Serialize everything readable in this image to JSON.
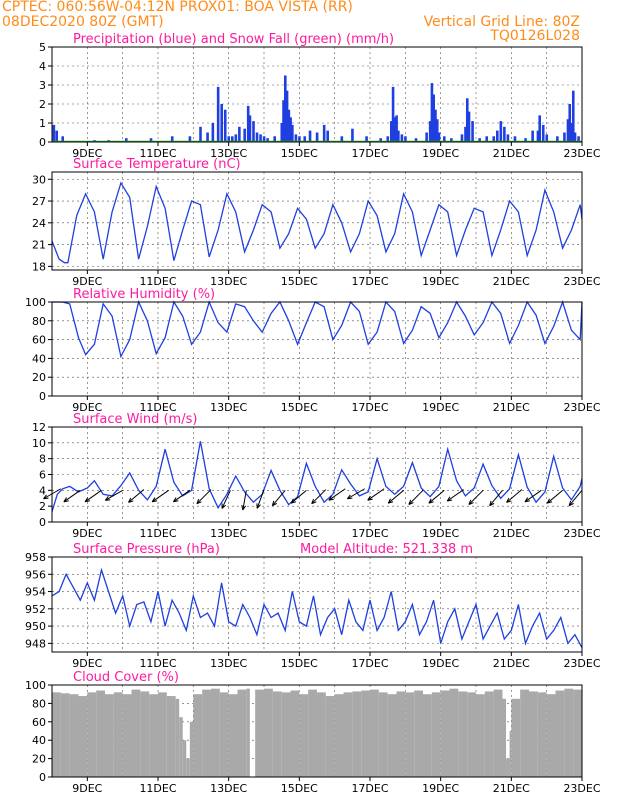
{
  "header": {
    "line1_left": "CPTEC:   060:56W-04:12N   PROX01: BOA VISTA (RR)",
    "line2_left": "08DEC2020 80Z (GMT)",
    "line2_right": "Vertical Grid Line: 80Z",
    "line3_right": "TQ0126L028"
  },
  "colors": {
    "header": "#ff8c1a",
    "panel_title": "#ff1aa0",
    "line": "#1f3fe0",
    "precip": "#1f3fe0",
    "snow": "#22aa22",
    "cloud": "#a9a9a9"
  },
  "time_axis": {
    "start_day": 8,
    "end_day": 23,
    "tick_labels": [
      {
        "day": 9,
        "label": "9DEC"
      },
      {
        "day": 11,
        "label": "11DEC"
      },
      {
        "day": 13,
        "label": "13DEC"
      },
      {
        "day": 15,
        "label": "15DEC"
      },
      {
        "day": 17,
        "label": "17DEC"
      },
      {
        "day": 19,
        "label": "19DEC"
      },
      {
        "day": 21,
        "label": "21DEC"
      },
      {
        "day": 23,
        "label": "23DEC"
      }
    ]
  },
  "chart_data": [
    {
      "type": "bar",
      "id": "precip",
      "title": "Precipitation (blue) and Snow Fall (green) (mm/h)",
      "ylim": [
        0,
        5
      ],
      "yticks": [
        0,
        1,
        2,
        3,
        4,
        5
      ],
      "grid": true,
      "series": [
        {
          "name": "Precipitation",
          "x": [
            8.05,
            8.13,
            8.3,
            9.2,
            9.6,
            10.1,
            10.8,
            11.4,
            11.9,
            12.2,
            12.4,
            12.55,
            12.7,
            12.8,
            12.9,
            13.0,
            13.1,
            13.2,
            13.3,
            13.45,
            13.55,
            13.6,
            13.7,
            13.8,
            13.9,
            14.0,
            14.1,
            14.3,
            14.5,
            14.55,
            14.6,
            14.65,
            14.7,
            14.75,
            14.8,
            14.9,
            15.0,
            15.15,
            15.3,
            15.5,
            15.7,
            15.8,
            16.2,
            16.5,
            16.9,
            17.3,
            17.5,
            17.6,
            17.65,
            17.7,
            17.75,
            17.8,
            17.9,
            18.0,
            18.3,
            18.6,
            18.7,
            18.75,
            18.8,
            18.85,
            18.9,
            18.95,
            19.1,
            19.3,
            19.6,
            19.7,
            19.75,
            19.8,
            19.9,
            20.1,
            20.3,
            20.5,
            20.6,
            20.7,
            20.8,
            20.9,
            21.1,
            21.4,
            21.6,
            21.75,
            21.8,
            21.9,
            22.0,
            22.3,
            22.5,
            22.6,
            22.65,
            22.7,
            22.75,
            22.8,
            22.9
          ],
          "values": [
            0.9,
            0.6,
            0.3,
            0.1,
            0.1,
            0.2,
            0.2,
            0.3,
            0.3,
            0.8,
            0.5,
            1.0,
            2.9,
            2.0,
            1.7,
            0.3,
            0.3,
            0.4,
            0.8,
            0.7,
            1.9,
            1.4,
            1.1,
            0.5,
            0.4,
            0.3,
            0.2,
            0.3,
            1.0,
            2.2,
            3.5,
            2.7,
            1.7,
            1.3,
            0.9,
            0.4,
            0.3,
            0.3,
            0.6,
            0.5,
            0.9,
            0.6,
            0.3,
            0.7,
            0.3,
            0.2,
            0.3,
            1.1,
            2.9,
            1.3,
            1.4,
            0.6,
            0.4,
            0.3,
            0.2,
            0.5,
            1.1,
            3.1,
            2.5,
            1.7,
            1.2,
            0.5,
            0.3,
            0.2,
            0.4,
            0.8,
            2.3,
            1.6,
            1.1,
            0.2,
            0.3,
            0.3,
            0.6,
            1.1,
            0.8,
            0.4,
            0.3,
            0.2,
            0.6,
            0.6,
            1.4,
            0.9,
            0.4,
            0.3,
            0.5,
            1.2,
            2.0,
            1.0,
            2.7,
            0.5,
            0.3
          ]
        },
        {
          "name": "Snow Fall",
          "x": [],
          "values": []
        }
      ]
    },
    {
      "type": "line",
      "id": "temp",
      "title": "Surface Temperature (nC)",
      "ylim": [
        17.5,
        31
      ],
      "yticks": [
        18,
        21,
        24,
        27,
        30
      ],
      "grid": true,
      "series": [
        {
          "name": "Surface Temperature",
          "x": [
            8.0,
            8.2,
            8.35,
            8.45,
            8.7,
            8.95,
            9.2,
            9.45,
            9.7,
            9.95,
            10.2,
            10.45,
            10.7,
            10.95,
            11.2,
            11.45,
            11.7,
            11.95,
            12.2,
            12.45,
            12.7,
            12.95,
            13.2,
            13.45,
            13.7,
            13.95,
            14.2,
            14.45,
            14.7,
            14.95,
            15.2,
            15.45,
            15.7,
            15.95,
            16.2,
            16.45,
            16.7,
            16.95,
            17.2,
            17.45,
            17.7,
            17.95,
            18.2,
            18.45,
            18.7,
            18.95,
            19.2,
            19.45,
            19.7,
            19.95,
            20.2,
            20.45,
            20.7,
            20.95,
            21.2,
            21.45,
            21.7,
            21.95,
            22.2,
            22.45,
            22.7,
            22.95,
            23.0
          ],
          "values": [
            21.5,
            19.0,
            18.5,
            18.5,
            25.0,
            28.0,
            25.5,
            19.0,
            25.5,
            29.5,
            27.5,
            19.0,
            23.5,
            29.0,
            26.0,
            18.8,
            23.0,
            27.0,
            26.5,
            19.3,
            23.0,
            28.0,
            25.5,
            20.0,
            23.0,
            26.5,
            25.5,
            20.5,
            22.5,
            26.0,
            24.5,
            20.5,
            22.5,
            26.5,
            24.0,
            20.0,
            22.5,
            27.0,
            25.0,
            20.0,
            22.5,
            28.0,
            25.5,
            19.5,
            23.0,
            26.5,
            25.5,
            19.5,
            23.0,
            26.0,
            25.5,
            19.5,
            23.0,
            27.0,
            25.5,
            19.5,
            23.0,
            28.5,
            25.5,
            20.5,
            23.0,
            26.5,
            24.5
          ]
        }
      ]
    },
    {
      "type": "line",
      "id": "rh",
      "title": "Relative Humidity (%)",
      "ylim": [
        0,
        100
      ],
      "yticks": [
        0,
        20,
        40,
        60,
        80,
        100
      ],
      "grid": true,
      "series": [
        {
          "name": "Relative Humidity",
          "x": [
            8.0,
            8.3,
            8.5,
            8.75,
            8.95,
            9.2,
            9.45,
            9.7,
            9.95,
            10.2,
            10.45,
            10.7,
            10.95,
            11.2,
            11.45,
            11.7,
            11.95,
            12.2,
            12.45,
            12.7,
            12.95,
            13.2,
            13.45,
            13.7,
            13.95,
            14.2,
            14.45,
            14.7,
            14.95,
            15.2,
            15.45,
            15.7,
            15.95,
            16.2,
            16.45,
            16.7,
            16.95,
            17.2,
            17.45,
            17.7,
            17.95,
            18.2,
            18.45,
            18.7,
            18.95,
            19.2,
            19.45,
            19.7,
            19.95,
            20.2,
            20.45,
            20.7,
            20.95,
            21.2,
            21.45,
            21.7,
            21.95,
            22.2,
            22.45,
            22.7,
            22.95,
            23.0
          ],
          "values": [
            100,
            100,
            98,
            62,
            44,
            55,
            98,
            85,
            42,
            60,
            100,
            80,
            45,
            62,
            100,
            85,
            55,
            68,
            100,
            78,
            68,
            98,
            95,
            80,
            68,
            88,
            100,
            80,
            55,
            78,
            100,
            95,
            60,
            75,
            100,
            90,
            55,
            68,
            100,
            90,
            56,
            70,
            95,
            88,
            62,
            78,
            100,
            85,
            65,
            78,
            100,
            88,
            56,
            75,
            100,
            86,
            56,
            74,
            100,
            70,
            60,
            100
          ]
        }
      ]
    },
    {
      "type": "line",
      "id": "wind",
      "title": "Surface Wind (m/s)",
      "ylim": [
        0,
        12
      ],
      "yticks": [
        0,
        2,
        4,
        6,
        8,
        10,
        12
      ],
      "grid": true,
      "series": [
        {
          "name": "Surface Wind",
          "x": [
            8.0,
            8.15,
            8.3,
            8.5,
            8.75,
            9.0,
            9.2,
            9.45,
            9.7,
            9.95,
            10.2,
            10.45,
            10.7,
            10.95,
            11.2,
            11.45,
            11.7,
            11.95,
            12.2,
            12.45,
            12.7,
            12.95,
            13.2,
            13.45,
            13.7,
            13.95,
            14.2,
            14.45,
            14.7,
            14.95,
            15.2,
            15.45,
            15.7,
            15.95,
            16.2,
            16.45,
            16.7,
            16.95,
            17.2,
            17.45,
            17.7,
            17.95,
            18.2,
            18.45,
            18.7,
            18.95,
            19.2,
            19.45,
            19.7,
            19.95,
            20.2,
            20.45,
            20.7,
            20.95,
            21.2,
            21.45,
            21.7,
            21.95,
            22.2,
            22.45,
            22.7,
            22.95,
            23.0
          ],
          "values": [
            1.3,
            3.5,
            4.2,
            4.5,
            3.8,
            4.3,
            5.2,
            3.5,
            3.3,
            4.6,
            6.2,
            4.0,
            2.8,
            4.5,
            9.2,
            5.0,
            3.3,
            4.0,
            10.2,
            4.2,
            1.8,
            3.5,
            5.8,
            3.8,
            2.5,
            3.5,
            6.5,
            4.0,
            2.2,
            3.2,
            7.4,
            4.5,
            2.5,
            3.5,
            6.6,
            4.8,
            3.3,
            3.8,
            8.0,
            4.5,
            3.5,
            4.5,
            7.5,
            4.3,
            3.2,
            4.5,
            9.2,
            5.2,
            3.3,
            4.3,
            7.3,
            4.6,
            3.0,
            4.2,
            8.5,
            4.4,
            2.5,
            3.8,
            8.3,
            4.3,
            2.8,
            4.5,
            5.5
          ]
        }
      ],
      "wind_vectors": {
        "x": [
          8.25,
          8.8,
          9.4,
          10.0,
          10.6,
          11.3,
          11.9,
          12.5,
          13.05,
          13.5,
          14.0,
          14.6,
          15.2,
          15.75,
          16.3,
          16.85,
          17.4,
          17.95,
          18.5,
          19.1,
          19.65,
          20.2,
          20.75,
          21.3,
          21.85,
          22.45,
          23.0
        ],
        "level": [
          4.2,
          4.0,
          4.0,
          4.0,
          4.1,
          4.0,
          4.0,
          4.1,
          4.0,
          4.0,
          4.1,
          4.0,
          4.0,
          4.1,
          4.2,
          4.2,
          4.2,
          4.0,
          4.0,
          4.0,
          4.1,
          4.0,
          4.0,
          4.1,
          4.0,
          4.0,
          4.0
        ],
        "angle_deg": [
          210,
          215,
          215,
          210,
          220,
          215,
          215,
          225,
          245,
          260,
          250,
          230,
          220,
          225,
          215,
          210,
          215,
          220,
          225,
          220,
          215,
          225,
          230,
          220,
          215,
          220,
          230
        ]
      }
    },
    {
      "type": "line",
      "id": "press",
      "title": "Surface Pressure (hPa)",
      "annotation": "Model Altitude: 521.338 m",
      "ylim": [
        947,
        958
      ],
      "yticks": [
        948,
        950,
        952,
        954,
        956,
        958
      ],
      "grid": true,
      "series": [
        {
          "name": "Surface Pressure",
          "x": [
            8.0,
            8.2,
            8.4,
            8.6,
            8.8,
            9.0,
            9.2,
            9.4,
            9.6,
            9.8,
            10.0,
            10.2,
            10.4,
            10.6,
            10.8,
            11.0,
            11.2,
            11.4,
            11.6,
            11.8,
            12.0,
            12.2,
            12.4,
            12.6,
            12.8,
            13.0,
            13.2,
            13.4,
            13.6,
            13.8,
            14.0,
            14.2,
            14.4,
            14.6,
            14.8,
            15.0,
            15.2,
            15.4,
            15.6,
            15.8,
            16.0,
            16.2,
            16.4,
            16.6,
            16.8,
            17.0,
            17.2,
            17.4,
            17.6,
            17.8,
            18.0,
            18.2,
            18.4,
            18.6,
            18.8,
            19.0,
            19.2,
            19.4,
            19.6,
            19.8,
            20.0,
            20.2,
            20.4,
            20.6,
            20.8,
            21.0,
            21.2,
            21.4,
            21.6,
            21.8,
            22.0,
            22.2,
            22.4,
            22.6,
            22.8,
            23.0
          ],
          "values": [
            953.5,
            954.0,
            956.0,
            954.5,
            953.0,
            955.0,
            953.0,
            956.5,
            954.0,
            951.5,
            953.5,
            950.0,
            952.5,
            952.8,
            950.5,
            954.0,
            950.0,
            953.0,
            951.5,
            949.5,
            953.5,
            951.0,
            951.5,
            950.0,
            955.0,
            950.5,
            950.0,
            952.5,
            951.0,
            949.0,
            952.5,
            951.0,
            951.5,
            949.5,
            954.0,
            950.5,
            950.0,
            953.5,
            949.0,
            951.0,
            952.0,
            949.0,
            953.0,
            950.5,
            949.5,
            953.0,
            949.5,
            951.0,
            954.0,
            949.5,
            950.5,
            952.5,
            949.0,
            950.5,
            953.0,
            948.0,
            950.5,
            952.0,
            948.5,
            950.5,
            952.5,
            948.5,
            950.0,
            951.5,
            948.5,
            949.5,
            952.5,
            948.0,
            950.0,
            951.5,
            948.5,
            949.5,
            951.0,
            948.0,
            949.0,
            947.5
          ]
        }
      ]
    },
    {
      "type": "bar",
      "id": "cloud",
      "title": "Cloud Cover (%)",
      "ylim": [
        0,
        100
      ],
      "yticks": [
        0,
        20,
        40,
        60,
        80,
        100
      ],
      "grid": true,
      "series": [
        {
          "name": "Cloud Cover",
          "x": [
            8.0,
            8.25,
            8.5,
            8.75,
            9.0,
            9.25,
            9.5,
            9.75,
            10.0,
            10.25,
            10.5,
            10.75,
            11.0,
            11.25,
            11.5,
            11.6,
            11.7,
            11.8,
            11.9,
            12.0,
            12.25,
            12.5,
            12.75,
            13.0,
            13.25,
            13.5,
            13.6,
            13.75,
            14.0,
            14.25,
            14.5,
            14.75,
            15.0,
            15.25,
            15.5,
            15.75,
            16.0,
            16.25,
            16.5,
            16.75,
            17.0,
            17.25,
            17.5,
            17.75,
            18.0,
            18.25,
            18.5,
            18.75,
            19.0,
            19.25,
            19.5,
            19.75,
            20.0,
            20.25,
            20.5,
            20.75,
            20.85,
            20.95,
            21.0,
            21.25,
            21.5,
            21.75,
            22.0,
            22.25,
            22.5,
            22.75,
            23.0
          ],
          "values": [
            92,
            91,
            90,
            88,
            92,
            94,
            90,
            92,
            90,
            95,
            93,
            90,
            92,
            88,
            85,
            65,
            40,
            20,
            60,
            90,
            95,
            96,
            92,
            90,
            95,
            96,
            0,
            95,
            96,
            93,
            92,
            94,
            90,
            95,
            92,
            88,
            90,
            92,
            93,
            94,
            95,
            92,
            90,
            93,
            92,
            94,
            90,
            92,
            94,
            96,
            93,
            92,
            90,
            93,
            95,
            85,
            20,
            50,
            85,
            95,
            93,
            92,
            90,
            94,
            96,
            95,
            95
          ]
        }
      ]
    }
  ]
}
